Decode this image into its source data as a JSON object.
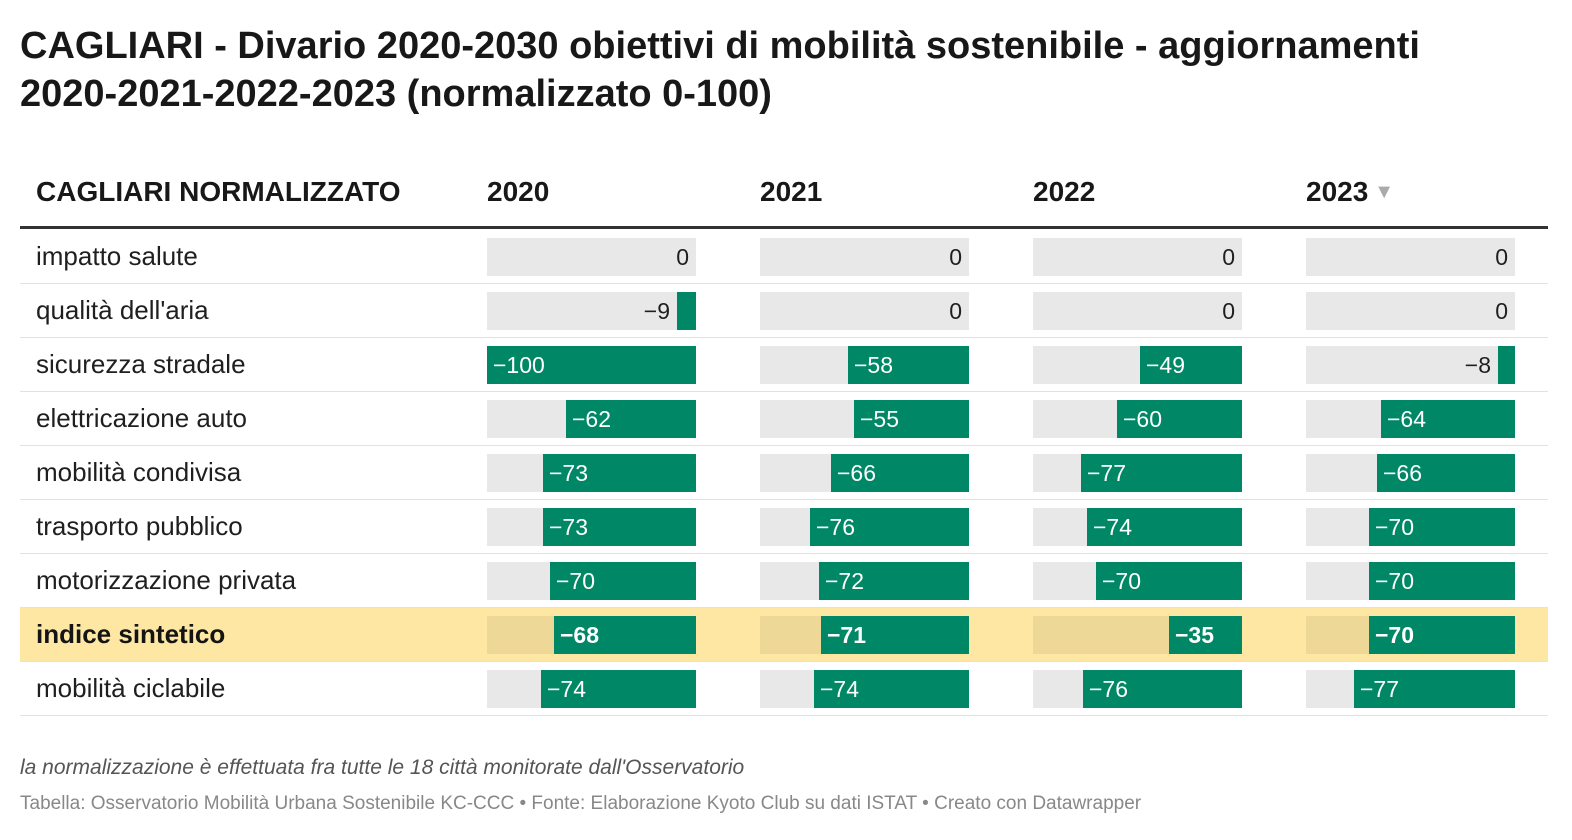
{
  "title": "CAGLIARI - Divario 2020-2030 obiettivi di mobilità sostenibile - aggiornamenti 2020-2021-2022-2023 (normalizzato 0-100)",
  "header": {
    "label_col": "CAGLIARI NORMALIZZATO",
    "years": [
      "2020",
      "2021",
      "2022",
      "2023"
    ],
    "sort_indicator": "▼"
  },
  "chart_data": {
    "type": "table",
    "columns": [
      "2020",
      "2021",
      "2022",
      "2023"
    ],
    "range": [
      -100,
      0
    ],
    "sorted_by": "2023",
    "rows": [
      {
        "label": "impatto salute",
        "values": [
          0,
          0,
          0,
          0
        ],
        "highlight": false
      },
      {
        "label": "qualità dell'aria",
        "values": [
          -9,
          0,
          0,
          0
        ],
        "highlight": false
      },
      {
        "label": "sicurezza stradale",
        "values": [
          -100,
          -58,
          -49,
          -8
        ],
        "highlight": false
      },
      {
        "label": "elettricazione auto",
        "values": [
          -62,
          -55,
          -60,
          -64
        ],
        "highlight": false
      },
      {
        "label": "mobilità condivisa",
        "values": [
          -73,
          -66,
          -77,
          -66
        ],
        "highlight": false
      },
      {
        "label": "trasporto pubblico",
        "values": [
          -73,
          -76,
          -74,
          -70
        ],
        "highlight": false
      },
      {
        "label": "motorizzazione privata",
        "values": [
          -70,
          -72,
          -70,
          -70
        ],
        "highlight": false
      },
      {
        "label": "indice sintetico",
        "values": [
          -68,
          -71,
          -35,
          -70
        ],
        "highlight": true
      },
      {
        "label": "mobilità ciclabile",
        "values": [
          -74,
          -74,
          -76,
          -77
        ],
        "highlight": false
      }
    ],
    "colors": {
      "bar": "#008866",
      "track": "#e8e8e8",
      "highlight_row": "#fde7a3"
    }
  },
  "footer": {
    "note": "la normalizzazione è effettuata fra tutte le 18 città monitorate dall'Osservatorio",
    "source": "Tabella: Osservatorio Mobilità Urbana Sostenibile KC-CCC • Fonte: Elaborazione Kyoto Club su dati ISTAT • Creato con Datawrapper"
  }
}
